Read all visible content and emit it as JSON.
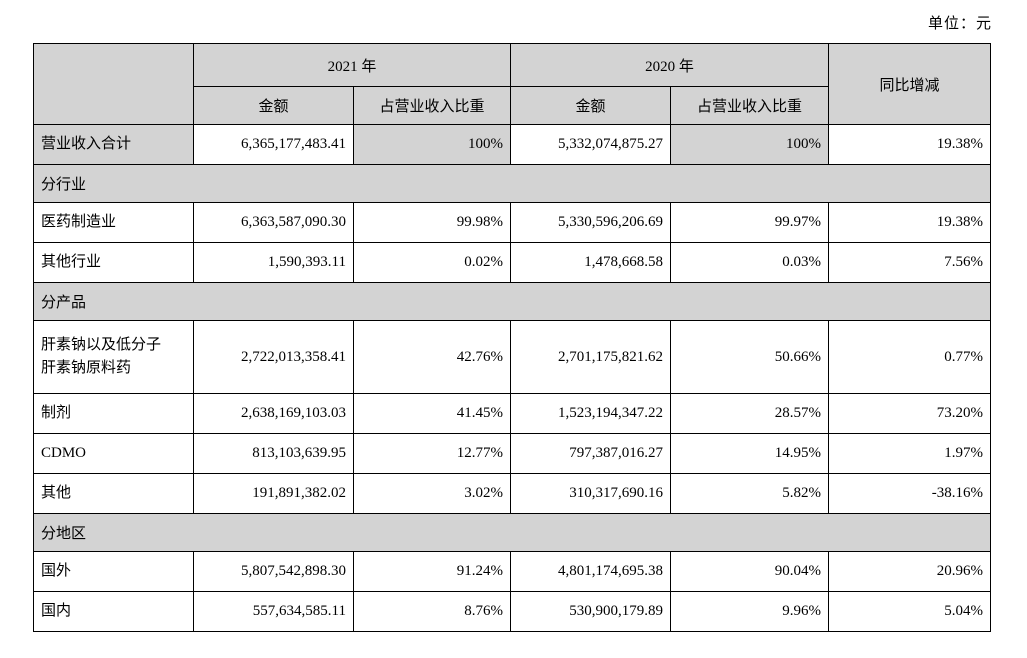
{
  "unit_label": "单位：元",
  "table": {
    "header": {
      "year_2021": "2021 年",
      "year_2020": "2020 年",
      "amount": "金额",
      "share": "占营业收入比重",
      "yoy": "同比增减"
    },
    "rows": [
      {
        "type": "data",
        "shaded": true,
        "label": "营业收入合计",
        "amount_2021": "6,365,177,483.41",
        "share_2021": "100%",
        "amount_2020": "5,332,074,875.27",
        "share_2020": "100%",
        "yoy": "19.38%"
      },
      {
        "type": "section",
        "label": "分行业"
      },
      {
        "type": "data",
        "label": "医药制造业",
        "amount_2021": "6,363,587,090.30",
        "share_2021": "99.98%",
        "amount_2020": "5,330,596,206.69",
        "share_2020": "99.97%",
        "yoy": "19.38%"
      },
      {
        "type": "data",
        "label": "其他行业",
        "amount_2021": "1,590,393.11",
        "share_2021": "0.02%",
        "amount_2020": "1,478,668.58",
        "share_2020": "0.03%",
        "yoy": "7.56%"
      },
      {
        "type": "section",
        "label": "分产品"
      },
      {
        "type": "data",
        "tall": true,
        "label": "肝素钠以及低分子\n肝素钠原料药",
        "amount_2021": "2,722,013,358.41",
        "share_2021": "42.76%",
        "amount_2020": "2,701,175,821.62",
        "share_2020": "50.66%",
        "yoy": "0.77%"
      },
      {
        "type": "data",
        "label": "制剂",
        "amount_2021": "2,638,169,103.03",
        "share_2021": "41.45%",
        "amount_2020": "1,523,194,347.22",
        "share_2020": "28.57%",
        "yoy": "73.20%"
      },
      {
        "type": "data",
        "label": "CDMO",
        "amount_2021": "813,103,639.95",
        "share_2021": "12.77%",
        "amount_2020": "797,387,016.27",
        "share_2020": "14.95%",
        "yoy": "1.97%"
      },
      {
        "type": "data",
        "label": "其他",
        "amount_2021": "191,891,382.02",
        "share_2021": "3.02%",
        "amount_2020": "310,317,690.16",
        "share_2020": "5.82%",
        "yoy": "-38.16%"
      },
      {
        "type": "section",
        "label": "分地区"
      },
      {
        "type": "data",
        "label": "国外",
        "amount_2021": "5,807,542,898.30",
        "share_2021": "91.24%",
        "amount_2020": "4,801,174,695.38",
        "share_2020": "90.04%",
        "yoy": "20.96%"
      },
      {
        "type": "data",
        "label": "国内",
        "amount_2021": "557,634,585.11",
        "share_2021": "8.76%",
        "amount_2020": "530,900,179.89",
        "share_2020": "9.96%",
        "yoy": "5.04%"
      }
    ]
  },
  "colors": {
    "shading": "#d3d3d3",
    "border": "#000000",
    "text": "#000000",
    "background": "#ffffff"
  }
}
